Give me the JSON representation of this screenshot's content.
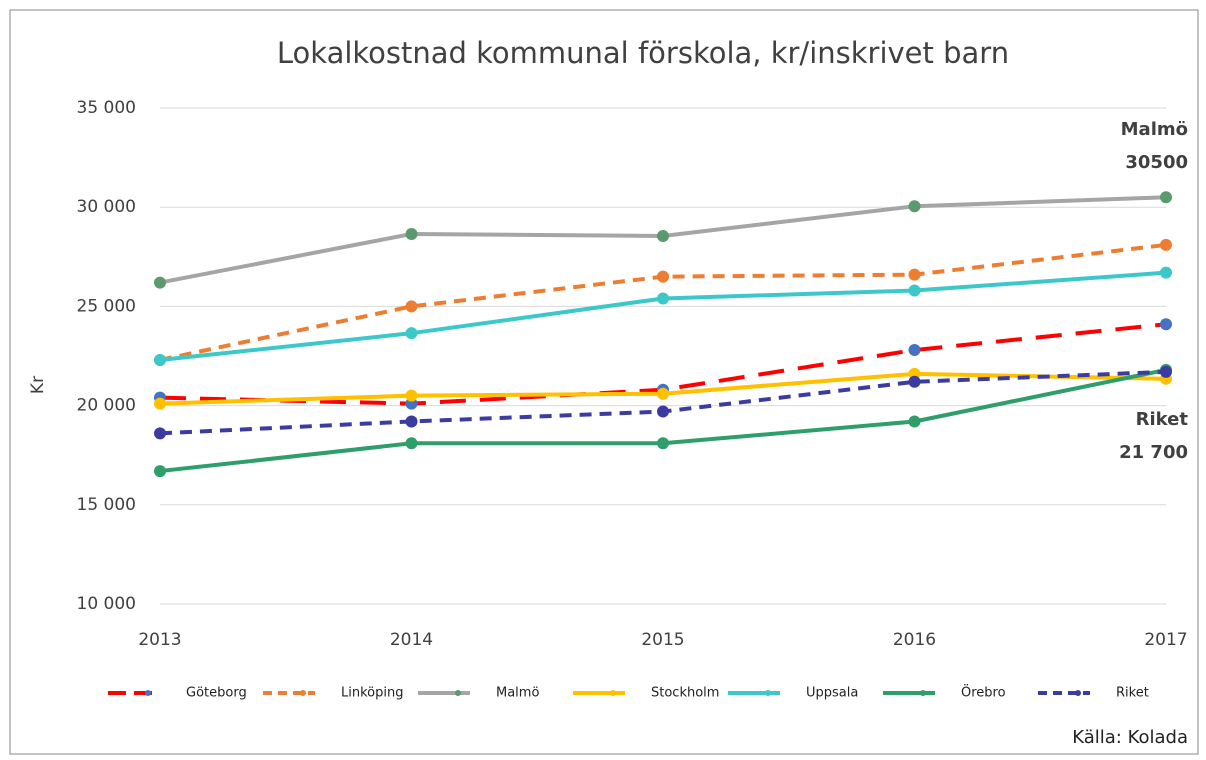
{
  "chart_data": {
    "type": "line",
    "title": "Lokalkostnad kommunal förskola, kr/inskrivet barn",
    "ylabel": "Kr",
    "categories": [
      "2013",
      "2014",
      "2015",
      "2016",
      "2017"
    ],
    "ylim": [
      10000,
      35000
    ],
    "yticks": [
      {
        "value": 10000,
        "label": "10 000"
      },
      {
        "value": 15000,
        "label": "15 000"
      },
      {
        "value": 20000,
        "label": "20 000"
      },
      {
        "value": 25000,
        "label": "25 000"
      },
      {
        "value": 30000,
        "label": "30 000"
      },
      {
        "value": 35000,
        "label": "35 000"
      }
    ],
    "grid": true,
    "legend": "bottom",
    "series": [
      {
        "name": "Göteborg",
        "color": "#ff0000",
        "marker_color": "#4472c4",
        "dash": "long",
        "values": [
          20400,
          20100,
          20800,
          22800,
          24100
        ]
      },
      {
        "name": "Linköping",
        "color": "#ed7d31",
        "marker_color": "#ed7d31",
        "dash": "short",
        "values": [
          22300,
          25000,
          26500,
          26600,
          28100
        ]
      },
      {
        "name": "Malmö",
        "color": "#a5a5a5",
        "marker_color": "#5a9a6e",
        "dash": "solid",
        "values": [
          26200,
          28650,
          28550,
          30050,
          30500
        ]
      },
      {
        "name": "Stockholm",
        "color": "#ffc000",
        "marker_color": "#ffc000",
        "dash": "solid",
        "values": [
          20100,
          20500,
          20600,
          21600,
          21350
        ]
      },
      {
        "name": "Uppsala",
        "color": "#3cc8c8",
        "marker_color": "#3cc8c8",
        "dash": "solid",
        "values": [
          22300,
          23650,
          25400,
          25800,
          26700
        ]
      },
      {
        "name": "Örebro",
        "color": "#2e9e6a",
        "marker_color": "#2e9e6a",
        "dash": "solid",
        "values": [
          16700,
          18100,
          18100,
          19200,
          21800
        ]
      },
      {
        "name": "Riket",
        "color": "#3c3ca0",
        "marker_color": "#3c3ca0",
        "dash": "short",
        "values": [
          18600,
          19200,
          19700,
          21200,
          21700
        ]
      }
    ],
    "annotations": [
      {
        "name": "Malmö",
        "label": "30500"
      },
      {
        "name": "Riket",
        "label": "21 700"
      }
    ],
    "source": "Källa: Kolada"
  }
}
